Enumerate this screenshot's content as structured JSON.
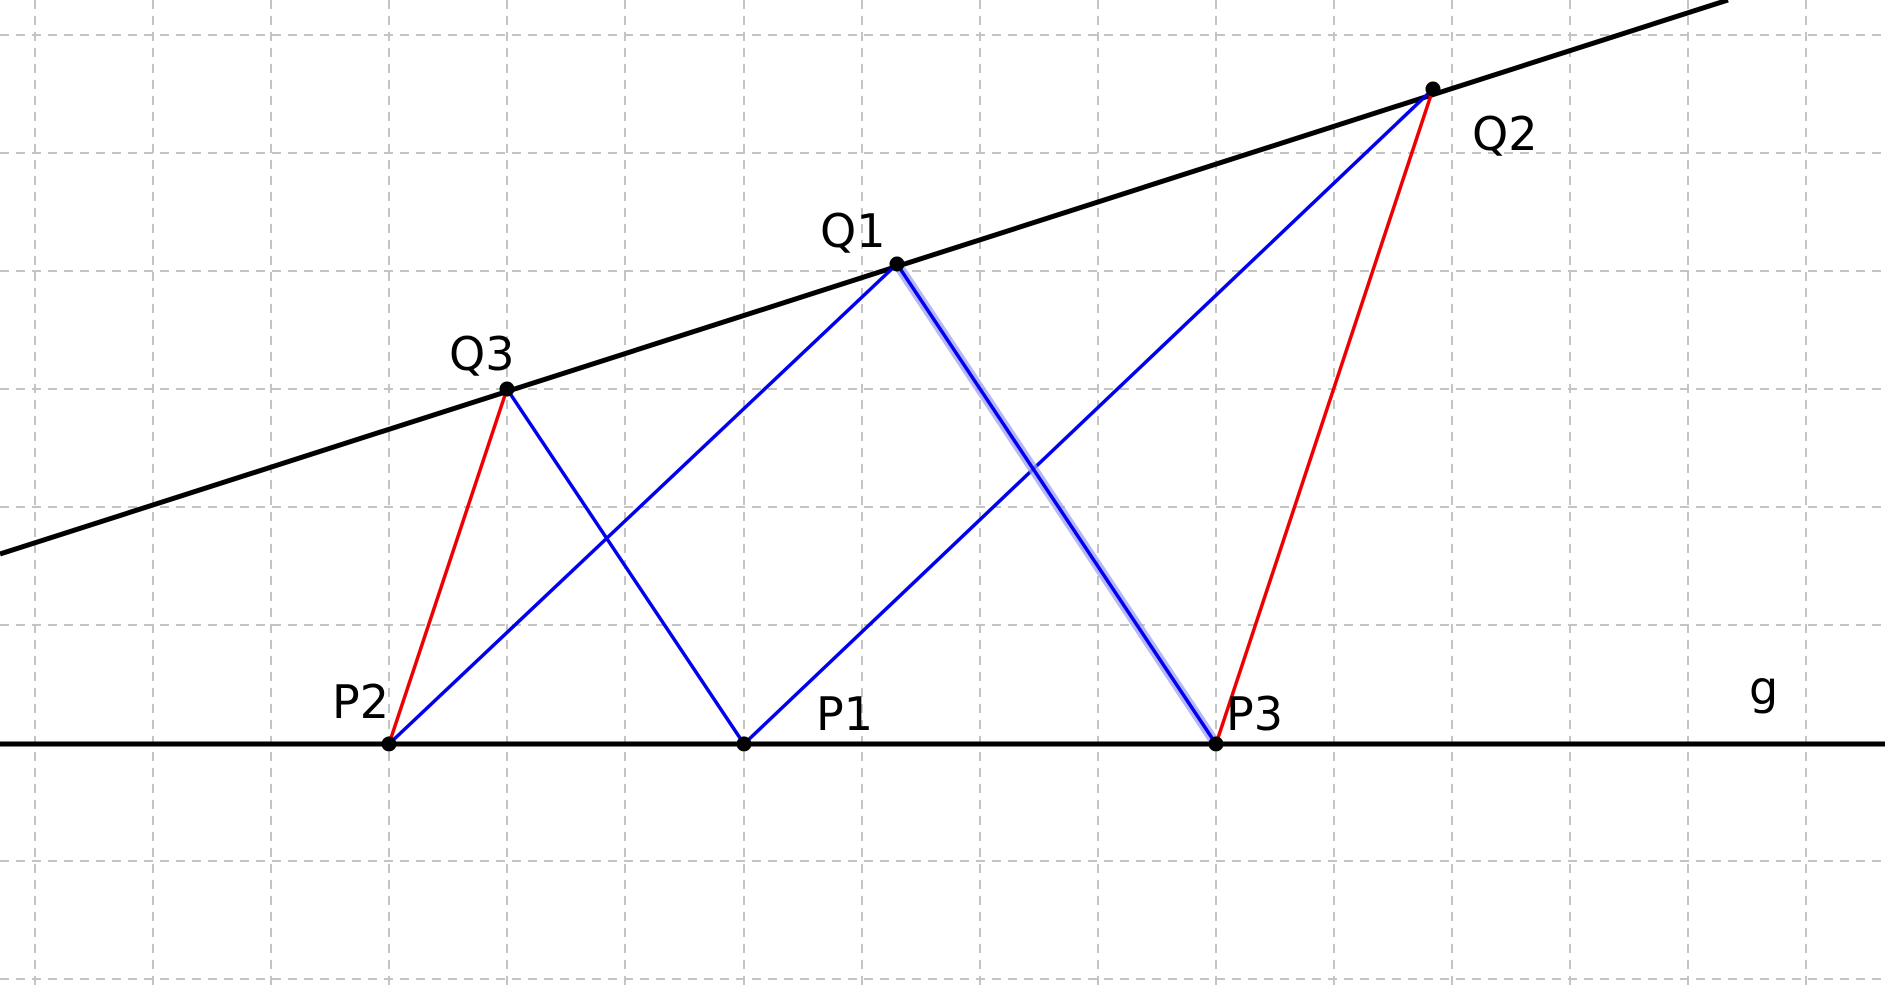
{
  "figure": {
    "lines": {
      "g_label": "g"
    },
    "points": {
      "P1": {
        "label": "P1"
      },
      "P2": {
        "label": "P2"
      },
      "P3": {
        "label": "P3"
      },
      "Q1": {
        "label": "Q1"
      },
      "Q2": {
        "label": "Q2"
      },
      "Q3": {
        "label": "Q3"
      }
    },
    "colors": {
      "lines": "#000000",
      "blue_segments": "#0000ee",
      "red_segments": "#ee0000",
      "points": "#000000",
      "grid": "#c4c4c4"
    },
    "segments": {
      "blue": [
        [
          "P2",
          "Q1"
        ],
        [
          "P1",
          "Q2"
        ],
        [
          "Q3",
          "P1"
        ],
        [
          "Q1",
          "P3"
        ]
      ],
      "red": [
        [
          "P2",
          "Q3"
        ],
        [
          "P3",
          "Q2"
        ]
      ]
    },
    "grid": "dashed"
  }
}
